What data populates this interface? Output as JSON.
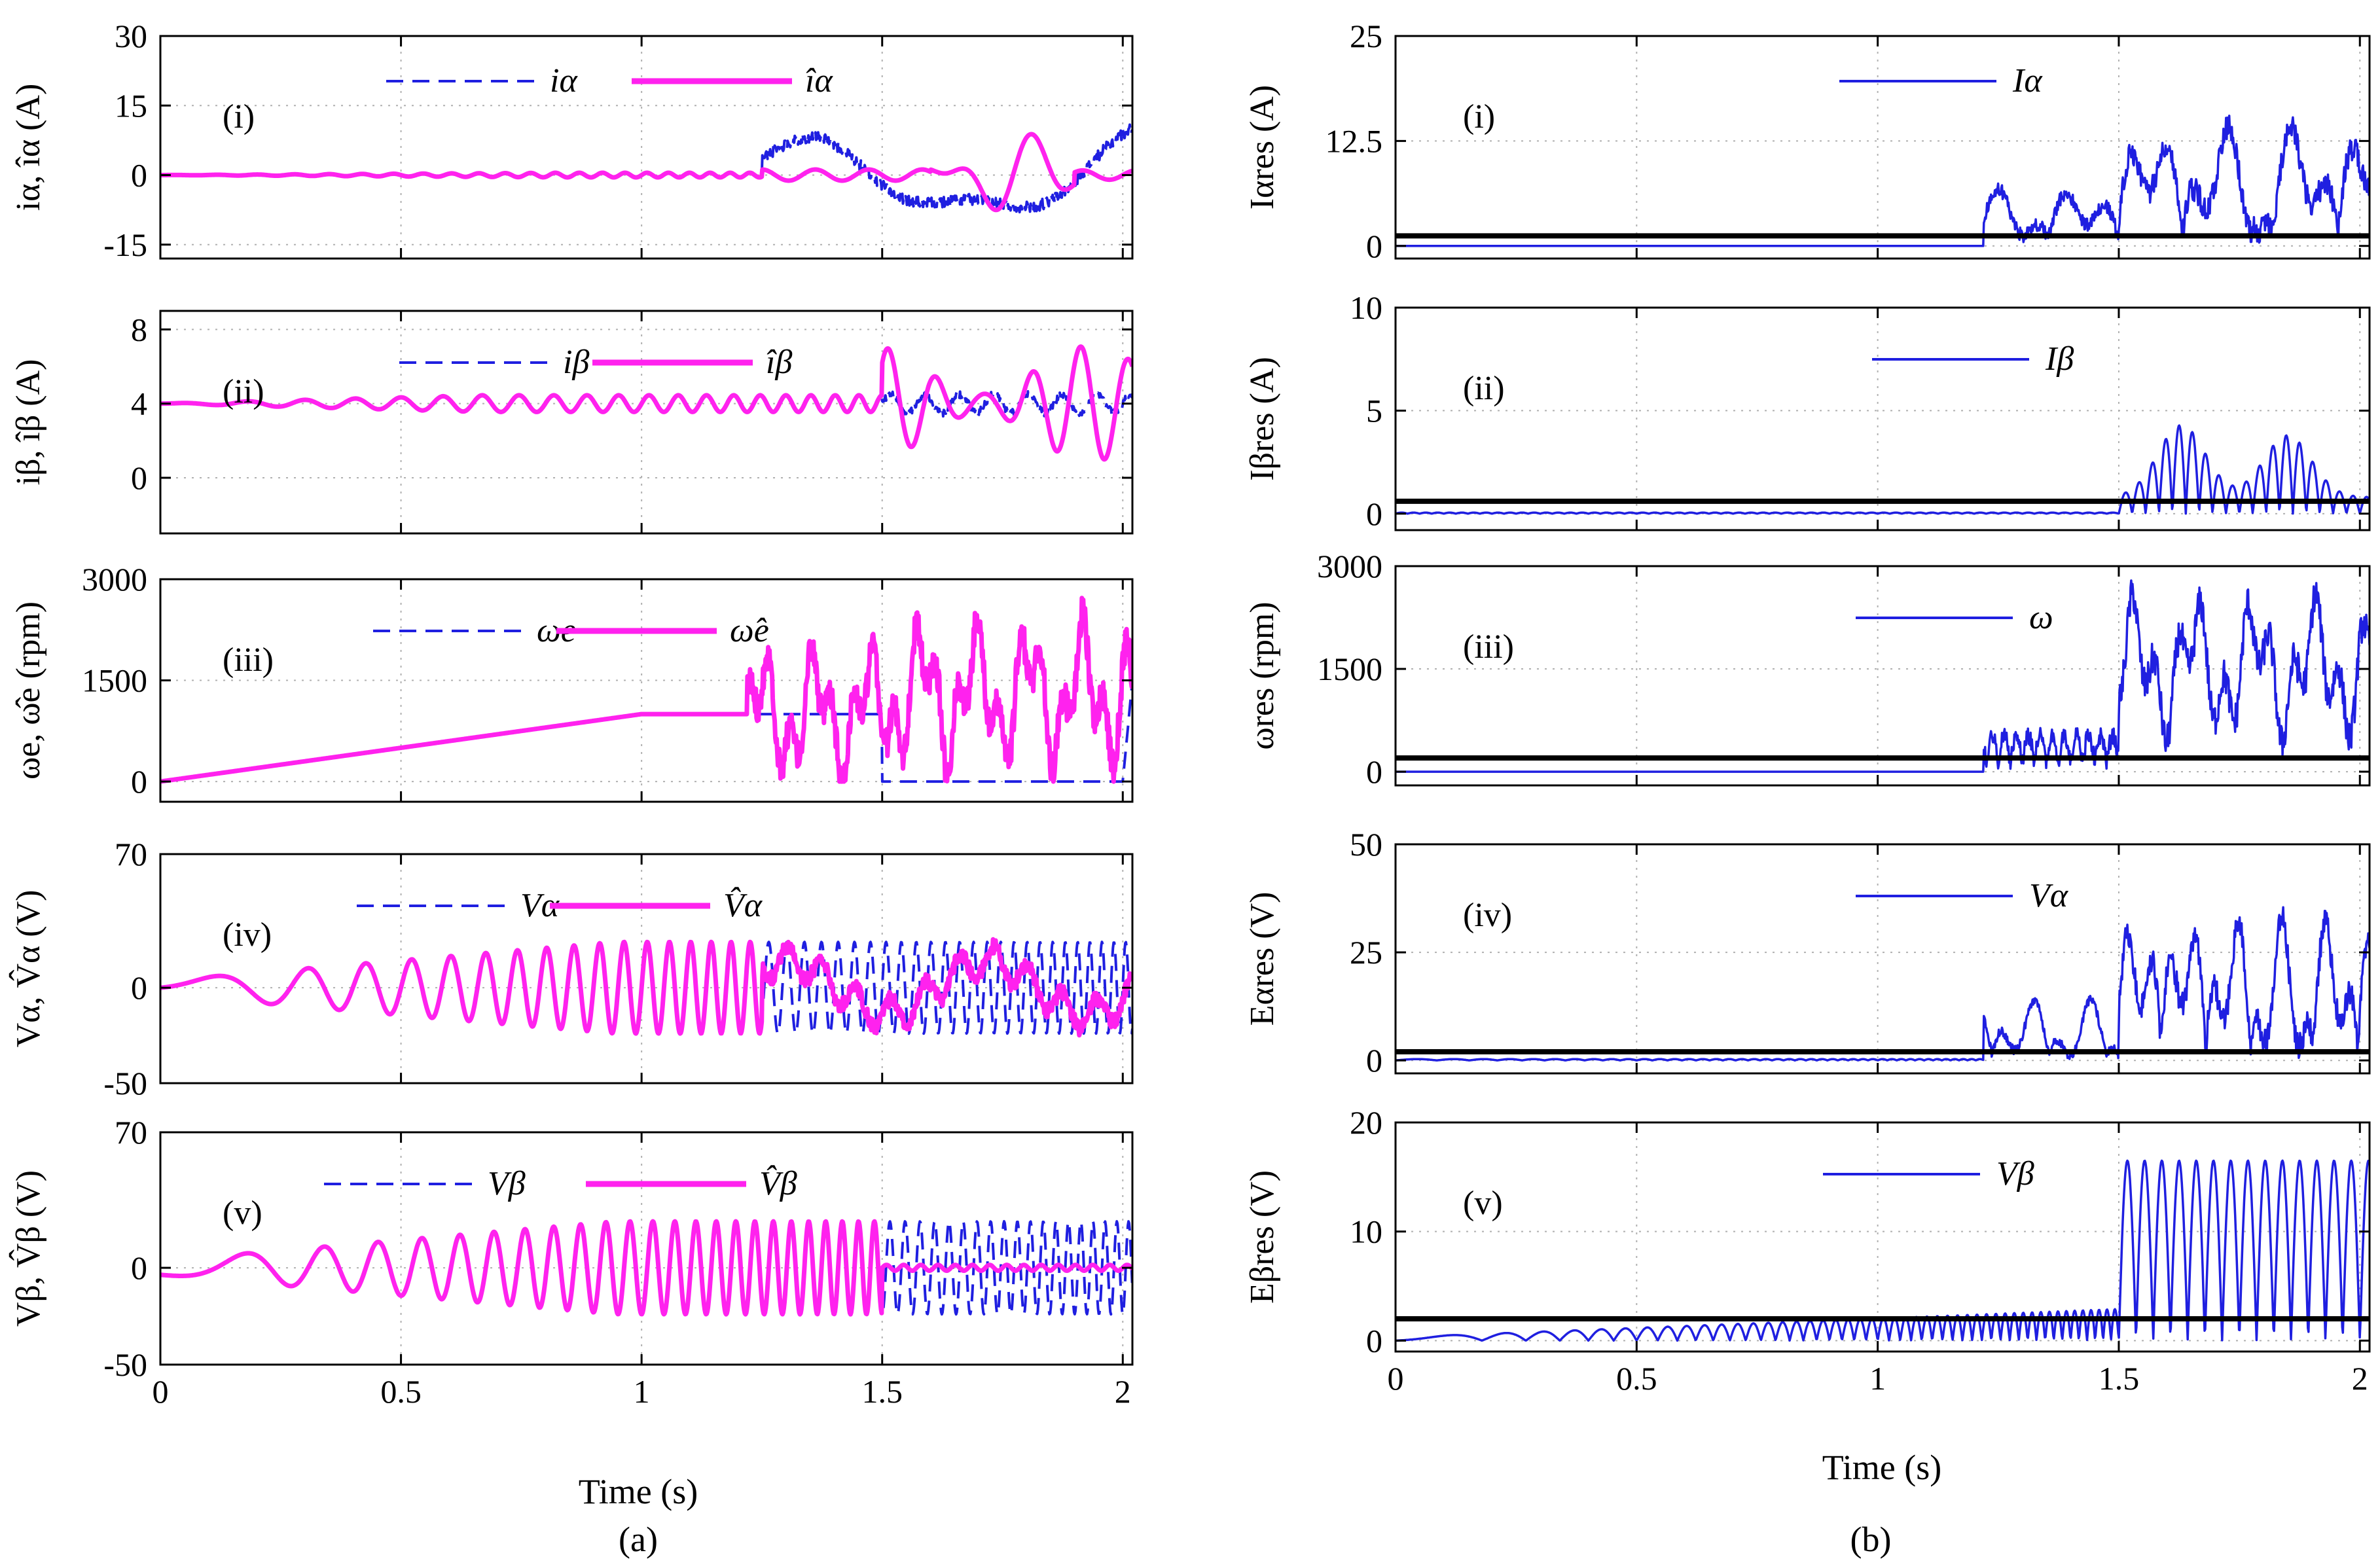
{
  "figure": {
    "panel_a_caption": "(a)",
    "panel_b_caption": "(b)",
    "xlabel": "Time (s)"
  },
  "colors": {
    "blue": "#1f1fe0",
    "magenta": "#ff22ee",
    "black": "#000000",
    "grid": "#b0b0b0"
  },
  "chart_data": [
    {
      "type": "line",
      "id": "a1",
      "panel": "(i)",
      "ylabel": "iα, îα (A)",
      "ylim": [
        -18,
        30
      ],
      "yticks": [
        -15,
        0,
        15,
        30
      ],
      "yticklabels": [
        "-15",
        "0",
        "15",
        "30"
      ],
      "xlim": [
        0,
        2.02
      ],
      "xticks": [
        0,
        0.5,
        1,
        1.5,
        2
      ],
      "xticklabels": [
        "0",
        "0.5",
        "1",
        "1.5",
        "2"
      ],
      "legend": [
        "iα",
        "îα"
      ],
      "series": [
        {
          "name": "iα",
          "style": "dashed",
          "color": "blue",
          "kind": "i_alpha"
        },
        {
          "name": "îα",
          "style": "solid",
          "color": "magenta",
          "kind": "i_alpha_hat"
        }
      ]
    },
    {
      "type": "line",
      "id": "a2",
      "panel": "(ii)",
      "ylabel": "iβ, îβ (A)",
      "ylim": [
        -3,
        9
      ],
      "yticks": [
        0,
        4,
        8
      ],
      "yticklabels": [
        "0",
        "4",
        "8"
      ],
      "xlim": [
        0,
        2.02
      ],
      "xticks": [
        0,
        0.5,
        1,
        1.5,
        2
      ],
      "xticklabels": [
        "0",
        "0.5",
        "1",
        "1.5",
        "2"
      ],
      "legend": [
        "iβ",
        "îβ"
      ],
      "series": [
        {
          "name": "iβ",
          "style": "dashed",
          "color": "blue",
          "kind": "i_beta"
        },
        {
          "name": "îβ",
          "style": "solid",
          "color": "magenta",
          "kind": "i_beta_hat"
        }
      ]
    },
    {
      "type": "line",
      "id": "a3",
      "panel": "(iii)",
      "ylabel": "ωe, ω̂e (rpm)",
      "ylim": [
        -300,
        3000
      ],
      "yticks": [
        0,
        1500,
        3000
      ],
      "yticklabels": [
        "0",
        "1500",
        "3000"
      ],
      "xlim": [
        0,
        2.02
      ],
      "xticks": [
        0,
        0.5,
        1,
        1.5,
        2
      ],
      "xticklabels": [
        "0",
        "0.5",
        "1",
        "1.5",
        "2"
      ],
      "legend": [
        "ωe",
        "ω̂e"
      ],
      "series": [
        {
          "name": "ωe",
          "style": "dashed",
          "color": "blue",
          "kind": "omega"
        },
        {
          "name": "ω̂e",
          "style": "solid",
          "color": "magenta",
          "kind": "omega_hat"
        }
      ]
    },
    {
      "type": "line",
      "id": "a4",
      "panel": "(iv)",
      "ylabel": "Vα, V̂α (V)",
      "ylim": [
        -50,
        70
      ],
      "yticks": [
        -50,
        0,
        70
      ],
      "yticklabels": [
        "-50",
        "0",
        "70"
      ],
      "xlim": [
        0,
        2.02
      ],
      "xticks": [
        0,
        0.5,
        1,
        1.5,
        2
      ],
      "xticklabels": [
        "0",
        "0.5",
        "1",
        "1.5",
        "2"
      ],
      "legend": [
        "Vα",
        "V̂α"
      ],
      "series": [
        {
          "name": "Vα",
          "style": "dashed",
          "color": "blue",
          "kind": "v_alpha"
        },
        {
          "name": "V̂α",
          "style": "solid",
          "color": "magenta",
          "kind": "v_alpha_hat"
        }
      ]
    },
    {
      "type": "line",
      "id": "a5",
      "panel": "(v)",
      "ylabel": "Vβ, V̂β (V)",
      "ylim": [
        -50,
        70
      ],
      "yticks": [
        -50,
        0,
        70
      ],
      "yticklabels": [
        "-50",
        "0",
        "70"
      ],
      "xlim": [
        0,
        2.02
      ],
      "xticks": [
        0,
        0.5,
        1,
        1.5,
        2
      ],
      "xticklabels": [
        "0",
        "0.5",
        "1",
        "1.5",
        "2"
      ],
      "legend": [
        "Vβ",
        "V̂β"
      ],
      "series": [
        {
          "name": "Vβ",
          "style": "dashed",
          "color": "blue",
          "kind": "v_beta"
        },
        {
          "name": "V̂β",
          "style": "solid",
          "color": "magenta",
          "kind": "v_beta_hat"
        }
      ]
    },
    {
      "type": "line",
      "id": "b1",
      "panel": "(i)",
      "ylabel": "Iαres (A)",
      "ylim": [
        -1.5,
        25
      ],
      "yticks": [
        0,
        12.5,
        25
      ],
      "yticklabels": [
        "0",
        "12.5",
        "25"
      ],
      "xlim": [
        0,
        2.02
      ],
      "xticks": [
        0,
        0.5,
        1,
        1.5,
        2
      ],
      "xticklabels": [
        "0",
        "0.5",
        "1",
        "1.5",
        "2"
      ],
      "legend": [
        "Iα"
      ],
      "threshold": 1.2,
      "series": [
        {
          "name": "Iα",
          "style": "solid",
          "color": "blue",
          "kind": "res_i_alpha"
        }
      ]
    },
    {
      "type": "line",
      "id": "b2",
      "panel": "(ii)",
      "ylabel": "Iβres (A)",
      "ylim": [
        -0.8,
        10
      ],
      "yticks": [
        0,
        5,
        10
      ],
      "yticklabels": [
        "0",
        "5",
        "10"
      ],
      "xlim": [
        0,
        2.02
      ],
      "xticks": [
        0,
        0.5,
        1,
        1.5,
        2
      ],
      "xticklabels": [
        "0",
        "0.5",
        "1",
        "1.5",
        "2"
      ],
      "legend": [
        "Iβ"
      ],
      "threshold": 0.6,
      "series": [
        {
          "name": "Iβ",
          "style": "solid",
          "color": "blue",
          "kind": "res_i_beta"
        }
      ]
    },
    {
      "type": "line",
      "id": "b3",
      "panel": "(iii)",
      "ylabel": "ωres (rpm)",
      "ylim": [
        -200,
        3000
      ],
      "yticks": [
        0,
        1500,
        3000
      ],
      "yticklabels": [
        "0",
        "1500",
        "3000"
      ],
      "xlim": [
        0,
        2.02
      ],
      "xticks": [
        0,
        0.5,
        1,
        1.5,
        2
      ],
      "xticklabels": [
        "0",
        "0.5",
        "1",
        "1.5",
        "2"
      ],
      "legend": [
        "ω"
      ],
      "threshold": 200,
      "series": [
        {
          "name": "ω",
          "style": "solid",
          "color": "blue",
          "kind": "res_omega"
        }
      ]
    },
    {
      "type": "line",
      "id": "b4",
      "panel": "(iv)",
      "ylabel": "Eαres (V)",
      "ylim": [
        -3,
        50
      ],
      "yticks": [
        0,
        25,
        50
      ],
      "yticklabels": [
        "0",
        "25",
        "50"
      ],
      "xlim": [
        0,
        2.02
      ],
      "xticks": [
        0,
        0.5,
        1,
        1.5,
        2
      ],
      "xticklabels": [
        "0",
        "0.5",
        "1",
        "1.5",
        "2"
      ],
      "legend": [
        "Vα"
      ],
      "threshold": 2,
      "series": [
        {
          "name": "Vα",
          "style": "solid",
          "color": "blue",
          "kind": "res_v_alpha"
        }
      ]
    },
    {
      "type": "line",
      "id": "b5",
      "panel": "(v)",
      "ylabel": "Eβres (V)",
      "ylim": [
        -1,
        20
      ],
      "yticks": [
        0,
        10,
        20
      ],
      "yticklabels": [
        "0",
        "10",
        "20"
      ],
      "xlim": [
        0,
        2.02
      ],
      "xticks": [
        0,
        0.5,
        1,
        1.5,
        2
      ],
      "xticklabels": [
        "0",
        "0.5",
        "1",
        "1.5",
        "2"
      ],
      "legend": [
        "Vβ"
      ],
      "threshold": 2,
      "series": [
        {
          "name": "Vβ",
          "style": "solid",
          "color": "blue",
          "kind": "res_v_beta"
        }
      ]
    }
  ]
}
